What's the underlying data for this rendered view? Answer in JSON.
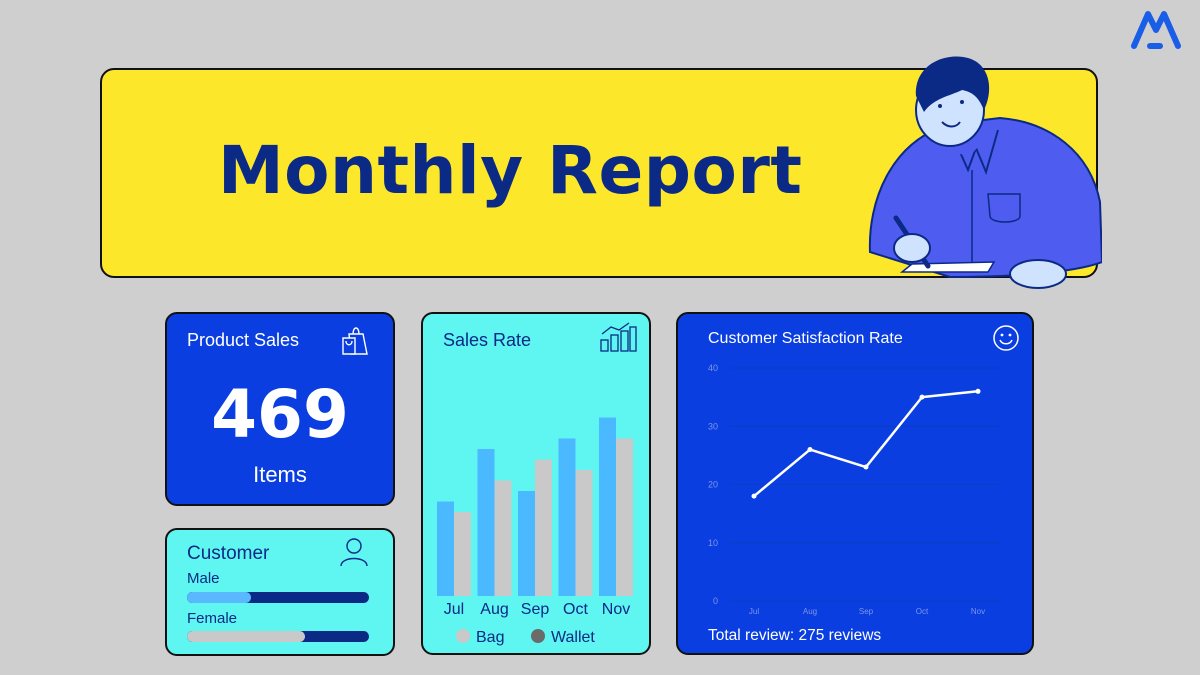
{
  "banner": {
    "title": "Monthly Report"
  },
  "product_sales": {
    "title": "Product Sales",
    "value": "469",
    "unit": "Items",
    "icon": "shopping-bag-icon"
  },
  "customer": {
    "title": "Customer",
    "icon": "user-icon",
    "bars": [
      {
        "label": "Male",
        "fraction": 0.35,
        "color": "#5ab8ff"
      },
      {
        "label": "Female",
        "fraction": 0.65,
        "color": "#c9c9c9"
      }
    ]
  },
  "sales_rate": {
    "title": "Sales Rate",
    "icon": "bar-chart-growth-icon"
  },
  "satisfaction": {
    "title": "Customer Satisfaction Rate",
    "icon": "smiley-icon",
    "footer": "Total review: 275 reviews"
  },
  "colors": {
    "brand_blue": "#0a3ee0",
    "navy": "#0b2a86",
    "yellow": "#fde72b",
    "cyan": "#5ff5f0"
  },
  "chart_data": [
    {
      "type": "bar",
      "categories": [
        "Jul",
        "Aug",
        "Sep",
        "Oct",
        "Nov"
      ],
      "series": [
        {
          "name": "Bag",
          "values": [
            18,
            28,
            20,
            30,
            34
          ],
          "color": "#4ab9ff"
        },
        {
          "name": "Wallet",
          "values": [
            16,
            22,
            26,
            24,
            30
          ],
          "color": "#c9c9c9"
        }
      ],
      "legend_colors": [
        "#c9c9c9",
        "#6b6b6b"
      ],
      "ylim": [
        0,
        40
      ]
    },
    {
      "type": "line",
      "x": [
        "Jul",
        "Aug",
        "Sep",
        "Oct",
        "Nov"
      ],
      "y": [
        18,
        26,
        23,
        35,
        36
      ],
      "yticks": [
        0,
        10,
        20,
        30,
        40
      ],
      "ylim": [
        0,
        40
      ],
      "grid": true
    }
  ]
}
